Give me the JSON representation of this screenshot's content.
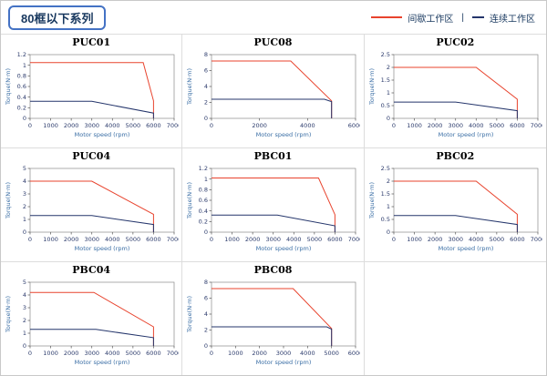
{
  "page": {
    "title": "80框以下系列"
  },
  "legend": {
    "separator": "|",
    "items": [
      {
        "label": "间歇工作区",
        "color": "#e8432d"
      },
      {
        "label": "连续工作区",
        "color": "#24356b"
      }
    ]
  },
  "chart_data": [
    {
      "type": "line",
      "title": "PUC01",
      "xlabel": "Motor speed (rpm)",
      "ylabel": "Torque(N·m)",
      "xlim": [
        0,
        7000
      ],
      "ylim": [
        0,
        1.2
      ],
      "xticks": [
        0,
        1000,
        2000,
        3000,
        4000,
        5000,
        6000,
        7000
      ],
      "yticks": [
        0,
        0.2,
        0.4,
        0.6,
        0.8,
        1,
        1.2
      ],
      "series": [
        {
          "name": "间歇工作区",
          "color": "#e8432d",
          "points": [
            [
              0,
              1.05
            ],
            [
              5500,
              1.05
            ],
            [
              6000,
              0.33
            ],
            [
              6000,
              0
            ]
          ]
        },
        {
          "name": "连续工作区",
          "color": "#24356b",
          "points": [
            [
              0,
              0.32
            ],
            [
              3000,
              0.32
            ],
            [
              6000,
              0.1
            ],
            [
              6000,
              0
            ]
          ]
        }
      ]
    },
    {
      "type": "line",
      "title": "PUC08",
      "xlabel": "Motor speed (rpm)",
      "ylabel": "Torque(N·m)",
      "xlim": [
        0,
        6000
      ],
      "ylim": [
        0,
        8
      ],
      "xticks": [
        0,
        2000,
        4000,
        6000
      ],
      "yticks": [
        0,
        2,
        4,
        6,
        8
      ],
      "series": [
        {
          "name": "间歇工作区",
          "color": "#e8432d",
          "points": [
            [
              0,
              7.2
            ],
            [
              3300,
              7.2
            ],
            [
              5000,
              2.2
            ],
            [
              5000,
              0
            ]
          ]
        },
        {
          "name": "连续工作区",
          "color": "#24356b",
          "points": [
            [
              0,
              2.4
            ],
            [
              4700,
              2.4
            ],
            [
              5000,
              2.1
            ],
            [
              5000,
              0
            ]
          ]
        }
      ]
    },
    {
      "type": "line",
      "title": "PUC02",
      "xlabel": "Motor speed (rpm)",
      "ylabel": "Torque(N·m)",
      "xlim": [
        0,
        7000
      ],
      "ylim": [
        0,
        2.5
      ],
      "xticks": [
        0,
        1000,
        2000,
        3000,
        4000,
        5000,
        6000,
        7000
      ],
      "yticks": [
        0,
        0.5,
        1,
        1.5,
        2,
        2.5
      ],
      "series": [
        {
          "name": "间歇工作区",
          "color": "#e8432d",
          "points": [
            [
              0,
              2
            ],
            [
              4000,
              2
            ],
            [
              6000,
              0.75
            ],
            [
              6000,
              0
            ]
          ]
        },
        {
          "name": "连续工作区",
          "color": "#24356b",
          "points": [
            [
              0,
              0.64
            ],
            [
              3000,
              0.64
            ],
            [
              6000,
              0.3
            ],
            [
              6000,
              0
            ]
          ]
        }
      ]
    },
    {
      "type": "line",
      "title": "PUC04",
      "xlabel": "Motor speed (rpm)",
      "ylabel": "Torque(N·m)",
      "xlim": [
        0,
        7000
      ],
      "ylim": [
        0,
        5
      ],
      "xticks": [
        0,
        1000,
        2000,
        3000,
        4000,
        5000,
        6000,
        7000
      ],
      "yticks": [
        0,
        1,
        2,
        3,
        4,
        5
      ],
      "series": [
        {
          "name": "间歇工作区",
          "color": "#e8432d",
          "points": [
            [
              0,
              4
            ],
            [
              3000,
              4
            ],
            [
              6000,
              1.4
            ],
            [
              6000,
              0
            ]
          ]
        },
        {
          "name": "连续工作区",
          "color": "#24356b",
          "points": [
            [
              0,
              1.3
            ],
            [
              3000,
              1.3
            ],
            [
              6000,
              0.6
            ],
            [
              6000,
              0
            ]
          ]
        }
      ]
    },
    {
      "type": "line",
      "title": "PBC01",
      "xlabel": "Motor speed (rpm)",
      "ylabel": "Torque(N·m)",
      "xlim": [
        0,
        7000
      ],
      "ylim": [
        0,
        1.2
      ],
      "xticks": [
        0,
        1000,
        2000,
        3000,
        4000,
        5000,
        6000,
        7000
      ],
      "yticks": [
        0,
        0.2,
        0.4,
        0.6,
        0.8,
        1,
        1.2
      ],
      "series": [
        {
          "name": "间歇工作区",
          "color": "#e8432d",
          "points": [
            [
              0,
              1.02
            ],
            [
              5200,
              1.02
            ],
            [
              6000,
              0.33
            ],
            [
              6000,
              0
            ]
          ]
        },
        {
          "name": "连续工作区",
          "color": "#24356b",
          "points": [
            [
              0,
              0.32
            ],
            [
              3200,
              0.32
            ],
            [
              6000,
              0.12
            ],
            [
              6000,
              0
            ]
          ]
        }
      ]
    },
    {
      "type": "line",
      "title": "PBC02",
      "xlabel": "Motor speed (rpm)",
      "ylabel": "Torque(N·m)",
      "xlim": [
        0,
        7000
      ],
      "ylim": [
        0,
        2.5
      ],
      "xticks": [
        0,
        1000,
        2000,
        3000,
        4000,
        5000,
        6000,
        7000
      ],
      "yticks": [
        0,
        0.5,
        1,
        1.5,
        2,
        2.5
      ],
      "series": [
        {
          "name": "间歇工作区",
          "color": "#e8432d",
          "points": [
            [
              0,
              2
            ],
            [
              4000,
              2
            ],
            [
              6000,
              0.7
            ],
            [
              6000,
              0
            ]
          ]
        },
        {
          "name": "连续工作区",
          "color": "#24356b",
          "points": [
            [
              0,
              0.65
            ],
            [
              3000,
              0.65
            ],
            [
              6000,
              0.3
            ],
            [
              6000,
              0
            ]
          ]
        }
      ]
    },
    {
      "type": "line",
      "title": "PBC04",
      "xlabel": "Motor speed (rpm)",
      "ylabel": "Torque(N·m)",
      "xlim": [
        0,
        7000
      ],
      "ylim": [
        0,
        5
      ],
      "xticks": [
        0,
        1000,
        2000,
        3000,
        4000,
        5000,
        6000,
        7000
      ],
      "yticks": [
        0,
        1,
        2,
        3,
        4,
        5
      ],
      "series": [
        {
          "name": "间歇工作区",
          "color": "#e8432d",
          "points": [
            [
              0,
              4.2
            ],
            [
              3100,
              4.2
            ],
            [
              6000,
              1.5
            ],
            [
              6000,
              0
            ]
          ]
        },
        {
          "name": "连续工作区",
          "color": "#24356b",
          "points": [
            [
              0,
              1.3
            ],
            [
              3200,
              1.3
            ],
            [
              6000,
              0.65
            ],
            [
              6000,
              0
            ]
          ]
        }
      ]
    },
    {
      "type": "line",
      "title": "PBC08",
      "xlabel": "Motor speed (rpm)",
      "ylabel": "Torque(N·m)",
      "xlim": [
        0,
        6000
      ],
      "ylim": [
        0,
        8
      ],
      "xticks": [
        0,
        1000,
        2000,
        3000,
        4000,
        5000,
        6000
      ],
      "yticks": [
        0,
        2,
        4,
        6,
        8
      ],
      "series": [
        {
          "name": "间歇工作区",
          "color": "#e8432d",
          "points": [
            [
              0,
              7.2
            ],
            [
              3400,
              7.2
            ],
            [
              5000,
              2.2
            ],
            [
              5000,
              0
            ]
          ]
        },
        {
          "name": "连续工作区",
          "color": "#24356b",
          "points": [
            [
              0,
              2.4
            ],
            [
              4800,
              2.4
            ],
            [
              5000,
              2.1
            ],
            [
              5000,
              0
            ]
          ]
        }
      ]
    }
  ]
}
